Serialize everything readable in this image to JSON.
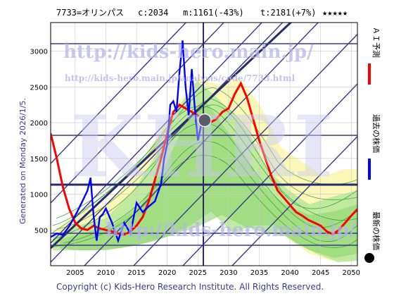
{
  "header": {
    "ticker": "7733=オリンパス",
    "current": "c:2034",
    "min": "m:1161(-43%)",
    "target": "t:2181(+7%)",
    "stars": "★★★★★"
  },
  "side_note": "Generated on Monday 2026/1/5.",
  "footer": "Copyright (c) Kids-Hero Research Institute. All Rights Reserved.",
  "watermark": {
    "url_main": "http://kids-hero.main.jp/",
    "url_sub": "http://kids-hero.main.jp/analysis/code/7733.html",
    "url_bottom": "http://kids-hero.main.jp/",
    "logo": "KHRI"
  },
  "legend": [
    {
      "label": "ＡＩ予測",
      "color": "#ff0000"
    },
    {
      "label": "過去の株価",
      "color": "#0000ff"
    },
    {
      "label": "最新の株価",
      "color": "#000000"
    }
  ],
  "chart_data": {
    "type": "line",
    "title": "",
    "xlabel": "",
    "ylabel": "",
    "xlim": [
      2001,
      2051
    ],
    "ylim": [
      0,
      3400
    ],
    "x_ticks": [
      2005,
      2010,
      2015,
      2020,
      2025,
      2030,
      2035,
      2040,
      2045,
      2050
    ],
    "y_ticks": [
      500,
      1000,
      1500,
      2000,
      2500,
      3000
    ],
    "grid": true,
    "series": [
      {
        "name": "ＡＩ予測",
        "color": "#ff0000",
        "x": [
          2001,
          2002,
          2003,
          2004,
          2005,
          2006,
          2007,
          2008,
          2009,
          2010,
          2011,
          2012,
          2013,
          2014,
          2015,
          2016,
          2017,
          2018,
          2019,
          2020,
          2021,
          2022,
          2023,
          2024,
          2025,
          2026,
          2027,
          2028,
          2029,
          2030,
          2031,
          2032,
          2033,
          2034,
          2035,
          2036,
          2037,
          2038,
          2039,
          2040,
          2041,
          2042,
          2043,
          2044,
          2045,
          2046,
          2047,
          2048,
          2049,
          2050,
          2051
        ],
        "y": [
          1850,
          1500,
          1100,
          800,
          600,
          520,
          500,
          560,
          520,
          500,
          480,
          450,
          430,
          480,
          560,
          680,
          900,
          1200,
          1500,
          1850,
          2150,
          2250,
          2200,
          2150,
          2100,
          2050,
          2000,
          2050,
          2150,
          2200,
          2400,
          2550,
          2350,
          2050,
          1750,
          1500,
          1250,
          1050,
          950,
          850,
          750,
          700,
          640,
          600,
          560,
          480,
          440,
          500,
          600,
          700,
          790
        ]
      },
      {
        "name": "過去の株価",
        "color": "#0000ff",
        "x": [
          2001,
          2002,
          2003,
          2004,
          2005,
          2006,
          2007,
          2007.5,
          2008,
          2008.5,
          2009,
          2009.5,
          2010,
          2011,
          2012,
          2013,
          2014,
          2015,
          2016,
          2017,
          2018,
          2019,
          2019.5,
          2020,
          2020.5,
          2021,
          2021.5,
          2022,
          2022.5,
          2023,
          2023.5,
          2024,
          2024.5,
          2025,
          2025.5,
          2026
        ],
        "y": [
          400,
          450,
          430,
          550,
          700,
          870,
          1050,
          1230,
          700,
          350,
          680,
          720,
          800,
          600,
          350,
          600,
          450,
          880,
          750,
          830,
          900,
          1150,
          1500,
          1700,
          2250,
          2300,
          2150,
          2700,
          3150,
          2500,
          2100,
          2750,
          2200,
          1750,
          1950,
          2034
        ]
      }
    ],
    "latest_point": {
      "x": 2026.1,
      "y": 2034
    }
  }
}
